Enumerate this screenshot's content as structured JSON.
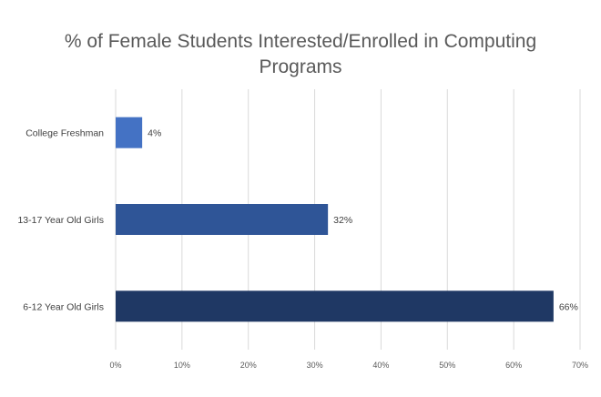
{
  "chart_data": {
    "type": "bar",
    "orientation": "horizontal",
    "title_lines": [
      "% of Female Students Interested/Enrolled in Computing",
      "Programs"
    ],
    "categories": [
      "College Freshman",
      "13-17 Year Old Girls",
      "6-12 Year Old Girls"
    ],
    "values": [
      4,
      32,
      66
    ],
    "data_labels": [
      "4%",
      "32%",
      "66%"
    ],
    "bar_colors": [
      "#4472C4",
      "#2F5597",
      "#1F3864"
    ],
    "xlim": [
      0,
      70
    ],
    "x_ticks": [
      0,
      10,
      20,
      30,
      40,
      50,
      60,
      70
    ],
    "x_tick_labels": [
      "0%",
      "10%",
      "20%",
      "30%",
      "40%",
      "50%",
      "60%",
      "70%"
    ],
    "grid": true,
    "legend": "none"
  }
}
